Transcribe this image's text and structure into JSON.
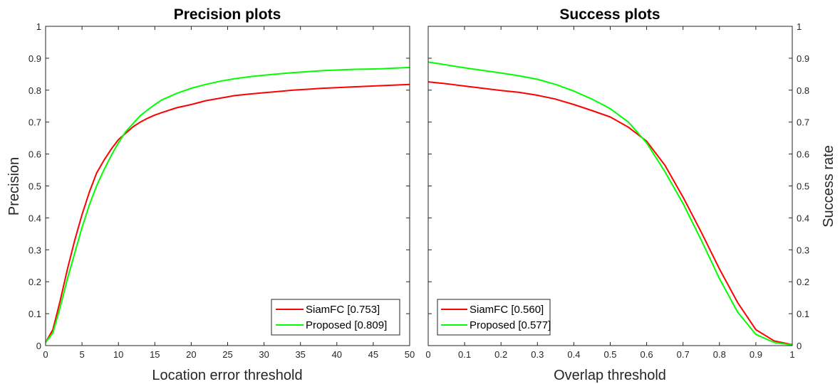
{
  "chart_data": [
    {
      "type": "line",
      "title": "Precision plots",
      "xlabel": "Location error threshold",
      "ylabel": "Precision",
      "xlim": [
        0,
        50
      ],
      "ylim": [
        0,
        1
      ],
      "x_ticks": [
        "0",
        "5",
        "10",
        "15",
        "20",
        "25",
        "30",
        "35",
        "40",
        "45",
        "50"
      ],
      "y_ticks": [
        "0",
        "0.1",
        "0.2",
        "0.3",
        "0.4",
        "0.5",
        "0.6",
        "0.7",
        "0.8",
        "0.9",
        "1"
      ],
      "y_axis_side": "left",
      "grid": false,
      "legend_position": "bottom-right",
      "series": [
        {
          "name": "SiamFC [0.753]",
          "color": "#ff0000",
          "x": [
            0,
            1,
            2,
            3,
            4,
            5,
            6,
            7,
            8,
            9,
            10,
            11,
            12,
            13,
            14,
            15,
            16,
            18,
            20,
            22,
            24,
            26,
            28,
            30,
            32,
            34,
            36,
            38,
            40,
            42,
            44,
            46,
            48,
            50
          ],
          "y": [
            0.01,
            0.05,
            0.14,
            0.24,
            0.33,
            0.41,
            0.48,
            0.54,
            0.58,
            0.615,
            0.645,
            0.665,
            0.685,
            0.7,
            0.712,
            0.722,
            0.73,
            0.745,
            0.755,
            0.767,
            0.775,
            0.783,
            0.788,
            0.792,
            0.796,
            0.8,
            0.803,
            0.806,
            0.808,
            0.81,
            0.812,
            0.814,
            0.816,
            0.818
          ]
        },
        {
          "name": "Proposed [0.809]",
          "color": "#00ff00",
          "x": [
            0,
            1,
            2,
            3,
            4,
            5,
            6,
            7,
            8,
            9,
            10,
            11,
            12,
            13,
            14,
            15,
            16,
            18,
            20,
            22,
            24,
            26,
            28,
            30,
            32,
            34,
            36,
            38,
            40,
            42,
            44,
            46,
            48,
            50
          ],
          "y": [
            0.01,
            0.04,
            0.12,
            0.21,
            0.29,
            0.37,
            0.44,
            0.5,
            0.55,
            0.595,
            0.635,
            0.67,
            0.695,
            0.72,
            0.738,
            0.755,
            0.77,
            0.79,
            0.806,
            0.818,
            0.828,
            0.836,
            0.842,
            0.847,
            0.851,
            0.855,
            0.858,
            0.861,
            0.863,
            0.865,
            0.866,
            0.867,
            0.869,
            0.871
          ]
        }
      ]
    },
    {
      "type": "line",
      "title": "Success plots",
      "xlabel": "Overlap threshold",
      "ylabel": "Success rate",
      "xlim": [
        0,
        1
      ],
      "ylim": [
        0,
        1
      ],
      "x_ticks": [
        "0",
        "0.1",
        "0.2",
        "0.3",
        "0.4",
        "0.5",
        "0.6",
        "0.7",
        "0.8",
        "0.9",
        "1"
      ],
      "y_ticks": [
        "0",
        "0.1",
        "0.2",
        "0.3",
        "0.4",
        "0.5",
        "0.6",
        "0.7",
        "0.8",
        "0.9",
        "1"
      ],
      "y_axis_side": "right",
      "grid": false,
      "legend_position": "bottom-left",
      "series": [
        {
          "name": "SiamFC [0.560]",
          "color": "#ff0000",
          "x": [
            0,
            0.05,
            0.1,
            0.15,
            0.2,
            0.25,
            0.3,
            0.35,
            0.4,
            0.45,
            0.5,
            0.55,
            0.6,
            0.65,
            0.7,
            0.75,
            0.8,
            0.85,
            0.9,
            0.95,
            1.0
          ],
          "y": [
            0.826,
            0.82,
            0.813,
            0.806,
            0.799,
            0.793,
            0.784,
            0.772,
            0.755,
            0.736,
            0.716,
            0.684,
            0.64,
            0.565,
            0.465,
            0.355,
            0.24,
            0.135,
            0.05,
            0.015,
            0.003
          ]
        },
        {
          "name": "Proposed [0.577]",
          "color": "#00ff00",
          "x": [
            0,
            0.05,
            0.1,
            0.15,
            0.2,
            0.25,
            0.3,
            0.35,
            0.4,
            0.45,
            0.5,
            0.55,
            0.6,
            0.65,
            0.7,
            0.75,
            0.8,
            0.85,
            0.9,
            0.95,
            1.0
          ],
          "y": [
            0.888,
            0.879,
            0.87,
            0.862,
            0.854,
            0.845,
            0.834,
            0.818,
            0.797,
            0.772,
            0.742,
            0.7,
            0.635,
            0.545,
            0.445,
            0.33,
            0.21,
            0.105,
            0.035,
            0.01,
            0.002
          ]
        }
      ]
    }
  ]
}
